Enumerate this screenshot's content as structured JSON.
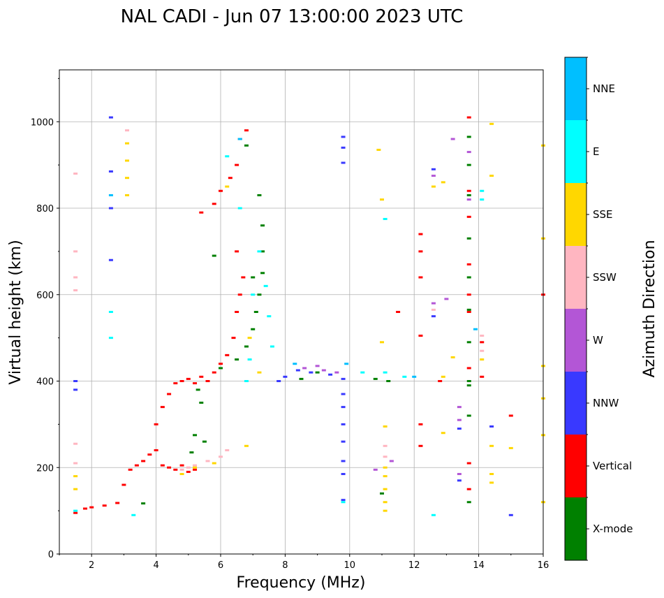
{
  "chart_data": {
    "type": "scatter",
    "title": "NAL CADI - Jun 07 13:00:00 2023 UTC",
    "xlabel": "Frequency (MHz)",
    "ylabel": "Virtual height (km)",
    "xlim": [
      1,
      16
    ],
    "ylim": [
      0,
      1120
    ],
    "xticks": [
      2,
      4,
      6,
      8,
      10,
      12,
      14,
      16
    ],
    "yticks": [
      0,
      200,
      400,
      600,
      800,
      1000
    ],
    "grid": true,
    "colorbar": {
      "label": "Azimuth Direction",
      "categories": [
        "X-mode",
        "Vertical",
        "NNW",
        "W",
        "SSW",
        "SSE",
        "E",
        "NNE"
      ],
      "colors": [
        "#008000",
        "#ff0000",
        "#3939ff",
        "#b356d6",
        "#ffb6c1",
        "#ffd700",
        "#00ffff",
        "#00bfff"
      ]
    },
    "series": [
      {
        "name": "Vertical",
        "points": [
          [
            1.5,
            95
          ],
          [
            1.8,
            105
          ],
          [
            2.0,
            108
          ],
          [
            2.4,
            112
          ],
          [
            2.8,
            118
          ],
          [
            3.0,
            160
          ],
          [
            3.2,
            195
          ],
          [
            3.4,
            205
          ],
          [
            3.6,
            215
          ],
          [
            3.8,
            230
          ],
          [
            4.0,
            240
          ],
          [
            4.2,
            205
          ],
          [
            4.4,
            200
          ],
          [
            4.6,
            195
          ],
          [
            4.8,
            205
          ],
          [
            5.0,
            190
          ],
          [
            5.2,
            195
          ],
          [
            4.0,
            300
          ],
          [
            4.2,
            340
          ],
          [
            4.4,
            370
          ],
          [
            4.6,
            395
          ],
          [
            4.8,
            400
          ],
          [
            5.0,
            405
          ],
          [
            5.2,
            395
          ],
          [
            5.4,
            410
          ],
          [
            5.6,
            400
          ],
          [
            5.8,
            420
          ],
          [
            6.0,
            440
          ],
          [
            6.2,
            460
          ],
          [
            6.4,
            500
          ],
          [
            6.5,
            560
          ],
          [
            6.6,
            600
          ],
          [
            6.7,
            640
          ],
          [
            6.5,
            700
          ],
          [
            5.4,
            790
          ],
          [
            5.8,
            810
          ],
          [
            6.0,
            840
          ],
          [
            6.3,
            870
          ],
          [
            6.5,
            900
          ],
          [
            6.6,
            960
          ],
          [
            6.8,
            980
          ],
          [
            12.2,
            505
          ],
          [
            12.2,
            640
          ],
          [
            12.2,
            700
          ],
          [
            12.2,
            740
          ],
          [
            12.2,
            300
          ],
          [
            12.2,
            250
          ],
          [
            12.8,
            400
          ],
          [
            13.7,
            430
          ],
          [
            13.7,
            560
          ],
          [
            13.7,
            600
          ],
          [
            13.7,
            670
          ],
          [
            13.7,
            780
          ],
          [
            13.7,
            840
          ],
          [
            13.7,
            1010
          ],
          [
            13.7,
            210
          ],
          [
            13.7,
            150
          ],
          [
            14.1,
            410
          ],
          [
            14.1,
            490
          ],
          [
            15.0,
            320
          ],
          [
            16.0,
            600
          ],
          [
            11.5,
            560
          ]
        ]
      },
      {
        "name": "X-mode",
        "points": [
          [
            5.3,
            380
          ],
          [
            5.4,
            350
          ],
          [
            5.2,
            275
          ],
          [
            5.5,
            260
          ],
          [
            5.1,
            235
          ],
          [
            6.0,
            430
          ],
          [
            6.5,
            450
          ],
          [
            6.8,
            480
          ],
          [
            7.0,
            520
          ],
          [
            7.1,
            560
          ],
          [
            7.2,
            600
          ],
          [
            7.3,
            650
          ],
          [
            7.3,
            700
          ],
          [
            7.3,
            760
          ],
          [
            7.0,
            640
          ],
          [
            7.2,
            830
          ],
          [
            6.8,
            945
          ],
          [
            5.8,
            690
          ],
          [
            8.5,
            405
          ],
          [
            9.0,
            420
          ],
          [
            10.8,
            405
          ],
          [
            11.2,
            400
          ],
          [
            11.0,
            140
          ],
          [
            13.7,
            400
          ],
          [
            13.7,
            490
          ],
          [
            13.7,
            565
          ],
          [
            13.7,
            640
          ],
          [
            13.7,
            730
          ],
          [
            13.7,
            830
          ],
          [
            13.7,
            900
          ],
          [
            13.7,
            965
          ],
          [
            13.7,
            120
          ],
          [
            13.7,
            390
          ],
          [
            13.7,
            320
          ],
          [
            3.6,
            117
          ]
        ]
      },
      {
        "name": "NNW",
        "points": [
          [
            1.5,
            400
          ],
          [
            1.5,
            380
          ],
          [
            2.6,
            1010
          ],
          [
            2.6,
            885
          ],
          [
            2.6,
            800
          ],
          [
            2.6,
            680
          ],
          [
            7.8,
            400
          ],
          [
            8.0,
            410
          ],
          [
            8.4,
            425
          ],
          [
            8.8,
            420
          ],
          [
            9.4,
            415
          ],
          [
            9.8,
            405
          ],
          [
            9.8,
            370
          ],
          [
            9.8,
            340
          ],
          [
            9.8,
            300
          ],
          [
            9.8,
            260
          ],
          [
            9.8,
            215
          ],
          [
            9.8,
            185
          ],
          [
            9.8,
            125
          ],
          [
            9.8,
            905
          ],
          [
            9.8,
            940
          ],
          [
            9.8,
            965
          ],
          [
            12.6,
            890
          ],
          [
            12.6,
            550
          ],
          [
            13.4,
            290
          ],
          [
            13.4,
            170
          ],
          [
            14.4,
            295
          ],
          [
            15.0,
            90
          ]
        ]
      },
      {
        "name": "W",
        "points": [
          [
            8.6,
            430
          ],
          [
            9.0,
            435
          ],
          [
            9.2,
            425
          ],
          [
            9.6,
            420
          ],
          [
            12.6,
            875
          ],
          [
            12.6,
            580
          ],
          [
            13.0,
            590
          ],
          [
            13.4,
            340
          ],
          [
            13.4,
            310
          ],
          [
            13.4,
            185
          ],
          [
            13.2,
            960
          ],
          [
            13.7,
            930
          ],
          [
            13.7,
            820
          ],
          [
            11.3,
            215
          ],
          [
            10.8,
            195
          ]
        ]
      },
      {
        "name": "SSW",
        "points": [
          [
            1.5,
            880
          ],
          [
            1.5,
            700
          ],
          [
            1.5,
            640
          ],
          [
            1.5,
            610
          ],
          [
            1.5,
            255
          ],
          [
            1.5,
            210
          ],
          [
            3.1,
            980
          ],
          [
            4.8,
            195
          ],
          [
            5.0,
            200
          ],
          [
            5.2,
            205
          ],
          [
            5.6,
            215
          ],
          [
            6.0,
            225
          ],
          [
            6.2,
            240
          ],
          [
            11.1,
            250
          ],
          [
            11.1,
            225
          ],
          [
            12.6,
            565
          ],
          [
            14.1,
            505
          ],
          [
            14.1,
            470
          ]
        ]
      },
      {
        "name": "SSE",
        "points": [
          [
            1.5,
            180
          ],
          [
            1.5,
            150
          ],
          [
            3.1,
            830
          ],
          [
            3.1,
            870
          ],
          [
            3.1,
            910
          ],
          [
            3.1,
            950
          ],
          [
            4.8,
            185
          ],
          [
            5.2,
            200
          ],
          [
            5.8,
            210
          ],
          [
            6.2,
            850
          ],
          [
            6.8,
            250
          ],
          [
            6.9,
            500
          ],
          [
            7.2,
            420
          ],
          [
            10.9,
            935
          ],
          [
            11.0,
            820
          ],
          [
            11.0,
            490
          ],
          [
            11.1,
            295
          ],
          [
            11.1,
            200
          ],
          [
            11.1,
            180
          ],
          [
            11.1,
            150
          ],
          [
            11.1,
            120
          ],
          [
            11.1,
            100
          ],
          [
            12.6,
            850
          ],
          [
            12.9,
            860
          ],
          [
            12.9,
            410
          ],
          [
            12.9,
            280
          ],
          [
            13.2,
            455
          ],
          [
            14.1,
            450
          ],
          [
            14.4,
            875
          ],
          [
            14.4,
            995
          ],
          [
            14.4,
            250
          ],
          [
            14.4,
            185
          ],
          [
            14.4,
            165
          ],
          [
            15.0,
            245
          ],
          [
            16.0,
            945
          ],
          [
            16.0,
            730
          ],
          [
            16.0,
            435
          ],
          [
            16.0,
            360
          ],
          [
            16.0,
            275
          ],
          [
            16.0,
            120
          ]
        ]
      },
      {
        "name": "E",
        "points": [
          [
            1.5,
            100
          ],
          [
            2.6,
            560
          ],
          [
            2.6,
            500
          ],
          [
            3.3,
            90
          ],
          [
            6.8,
            400
          ],
          [
            6.9,
            450
          ],
          [
            7.0,
            600
          ],
          [
            7.2,
            700
          ],
          [
            7.4,
            620
          ],
          [
            7.5,
            550
          ],
          [
            7.6,
            480
          ],
          [
            6.6,
            800
          ],
          [
            6.2,
            920
          ],
          [
            11.1,
            775
          ],
          [
            11.1,
            420
          ],
          [
            11.7,
            410
          ],
          [
            12.6,
            90
          ],
          [
            14.1,
            840
          ],
          [
            14.1,
            820
          ],
          [
            9.8,
            120
          ],
          [
            10.4,
            420
          ]
        ]
      },
      {
        "name": "NNE",
        "points": [
          [
            2.6,
            830
          ],
          [
            6.6,
            960
          ],
          [
            8.3,
            440
          ],
          [
            9.9,
            440
          ],
          [
            12.0,
            410
          ],
          [
            13.9,
            520
          ]
        ]
      }
    ]
  }
}
